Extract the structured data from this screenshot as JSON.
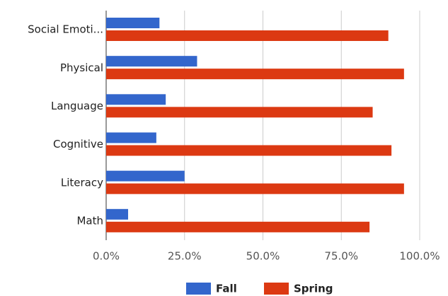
{
  "chart_data": {
    "type": "hbar",
    "categories": [
      "Social Emoti...",
      "Physical",
      "Language",
      "Cognitive",
      "Literacy",
      "Math"
    ],
    "series": [
      {
        "name": "Fall",
        "color": "#3366cc",
        "values": [
          17,
          29,
          19,
          16,
          25,
          7
        ]
      },
      {
        "name": "Spring",
        "color": "#dc3912",
        "values": [
          90,
          95,
          85,
          91,
          95,
          84
        ]
      }
    ],
    "xlim": [
      0,
      100
    ],
    "xticks": [
      {
        "value": 0,
        "label": "0.0%"
      },
      {
        "value": 25,
        "label": "25.0%"
      },
      {
        "value": 50,
        "label": "50.0%"
      },
      {
        "value": 75,
        "label": "75.0%"
      },
      {
        "value": 100,
        "label": "100.0%"
      }
    ],
    "grid": true,
    "legend": "bottom"
  }
}
